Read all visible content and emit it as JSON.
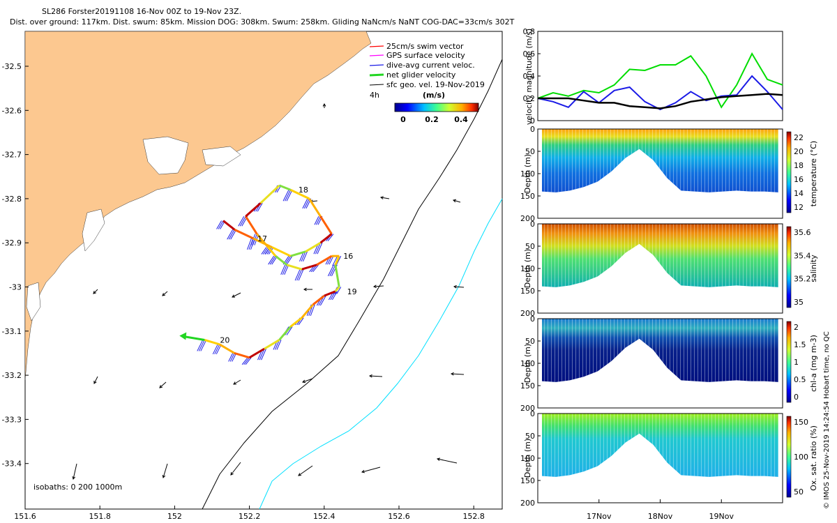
{
  "header": {
    "title": "SL286 Forster20191108 16-Nov 00Z to 19-Nov 23Z.",
    "subtitle": "Dist. over ground: 117km. Dist. swum: 85km. Mission DOG: 308km. Swum: 258km. Gliding NaNcm/s NaNT COG-DAC=33cm/s 302T"
  },
  "map": {
    "legend": {
      "swim": "25cm/s swim vector",
      "gps": "GPS surface velocity",
      "dac": "dive-avg current veloc.",
      "net": "net glider velocity",
      "sfc": "sfc geo. vel. 19-Nov-2019",
      "interval": "4h"
    },
    "colorbar": {
      "label": "(m/s)",
      "ticks": [
        "0",
        "0.2",
        "0.4"
      ]
    },
    "day_labels": [
      "16",
      "17",
      "18",
      "19",
      "20"
    ],
    "isobaths": "isobaths: 0   200  1000m",
    "x_ticks": [
      "151.6",
      "151.8",
      "152",
      "152.2",
      "152.4",
      "152.6",
      "152.8"
    ],
    "y_ticks": [
      "-32.5",
      "-32.6",
      "-32.7",
      "-32.8",
      "-32.9",
      "-33",
      "-33.1",
      "-33.2",
      "-33.3",
      "-33.4"
    ],
    "colors": {
      "land": "#fcc890",
      "isobath_200": "#000000",
      "isobath_1000": "#00e0ff",
      "net": "#22d622",
      "dac": "#1a1ae6",
      "swim": "#ff0000"
    }
  },
  "right": {
    "velocity": {
      "ylabel": "velocity magnitude (m/s)",
      "y_ticks": [
        "0",
        "0.2",
        "0.4",
        "0.6",
        "0.8"
      ]
    },
    "temperature": {
      "ylabel": "Depth (m)",
      "cblabel": "temperature (°C)",
      "cb_ticks": [
        "12",
        "14",
        "16",
        "18",
        "20",
        "22"
      ]
    },
    "salinity": {
      "ylabel": "Depth (m)",
      "cblabel": "salinity",
      "cb_ticks": [
        "35",
        "35.2",
        "35.4",
        "35.6"
      ]
    },
    "chla": {
      "ylabel": "Depth (m)",
      "cblabel": "chl-a (mg m-3)",
      "cb_ticks": [
        "0",
        "0.5",
        "1",
        "1.5",
        "2"
      ]
    },
    "oxygen": {
      "ylabel": "Depth (m)",
      "cblabel": "Ox. sat. ratio (%)",
      "cb_ticks": [
        "50",
        "100",
        "150"
      ]
    },
    "depth_ticks": [
      "0",
      "50",
      "100",
      "150",
      "200"
    ],
    "x_ticks": [
      "17Nov",
      "18Nov",
      "19Nov"
    ],
    "credit": "© IMOS 25-Nov-2019 14:24:54 Hobart time, no QC"
  },
  "chart_data": [
    {
      "type": "scatter",
      "title": "SL286 Forster20191108 16-Nov 00Z to 19-Nov 23Z.",
      "xlim": [
        151.6,
        152.9
      ],
      "ylim": [
        -33.5,
        -32.42
      ],
      "glider_track": {
        "lon": [
          152.08,
          152.12,
          152.16,
          152.2,
          152.24,
          152.28,
          152.31,
          152.34,
          152.37,
          152.4,
          152.43,
          152.44,
          152.43,
          152.44,
          152.42,
          152.38,
          152.34,
          152.3,
          152.27,
          152.25,
          152.22,
          152.19,
          152.23,
          152.28,
          152.31,
          152.36,
          152.39,
          152.42,
          152.39,
          152.35,
          152.31,
          152.26,
          152.21,
          152.16,
          152.13
        ],
        "lat": [
          -33.12,
          -33.13,
          -33.15,
          -33.16,
          -33.14,
          -33.12,
          -33.09,
          -33.07,
          -33.04,
          -33.02,
          -33.01,
          -33.0,
          -32.95,
          -32.93,
          -32.93,
          -32.95,
          -32.96,
          -32.95,
          -32.93,
          -32.91,
          -32.88,
          -32.84,
          -32.81,
          -32.77,
          -32.78,
          -32.8,
          -32.84,
          -32.88,
          -32.9,
          -32.92,
          -32.93,
          -32.91,
          -32.89,
          -32.87,
          -32.85
        ]
      },
      "day_labels": [
        {
          "day": "16",
          "lon": 152.44,
          "lat": -32.93
        },
        {
          "day": "17",
          "lon": 152.21,
          "lat": -32.89
        },
        {
          "day": "18",
          "lon": 152.32,
          "lat": -32.78
        },
        {
          "day": "19",
          "lon": 152.45,
          "lat": -33.01
        },
        {
          "day": "20",
          "lon": 152.11,
          "lat": -33.12
        }
      ],
      "legend": [
        "25cm/s swim vector",
        "GPS surface velocity",
        "dive-avg current veloc.",
        "net glider velocity",
        "sfc geo. vel. 19-Nov-2019"
      ]
    },
    {
      "type": "line",
      "ylabel": "velocity magnitude (m/s)",
      "xlim": [
        16.0,
        20.0
      ],
      "ylim": [
        0,
        0.8
      ],
      "x": [
        16.0,
        16.25,
        16.5,
        16.75,
        17.0,
        17.25,
        17.5,
        17.75,
        18.0,
        18.25,
        18.5,
        18.75,
        19.0,
        19.25,
        19.5,
        19.75,
        20.0
      ],
      "series": [
        {
          "color": "#00dd00",
          "values": [
            0.2,
            0.25,
            0.22,
            0.27,
            0.25,
            0.32,
            0.46,
            0.45,
            0.5,
            0.5,
            0.58,
            0.4,
            0.12,
            0.32,
            0.6,
            0.37,
            0.32
          ]
        },
        {
          "color": "#1a1ae6",
          "values": [
            0.2,
            0.17,
            0.12,
            0.26,
            0.16,
            0.27,
            0.3,
            0.17,
            0.1,
            0.16,
            0.26,
            0.18,
            0.22,
            0.23,
            0.4,
            0.26,
            0.1
          ]
        },
        {
          "color": "#000000",
          "values": [
            0.2,
            0.2,
            0.2,
            0.18,
            0.16,
            0.16,
            0.13,
            0.12,
            0.11,
            0.13,
            0.17,
            0.19,
            0.21,
            0.22,
            0.23,
            0.24,
            0.23
          ]
        }
      ]
    },
    {
      "type": "heatmap",
      "ylabel": "Depth (m)",
      "variable": "temperature (°C)",
      "xlim": [
        16.0,
        20.0
      ],
      "ylim": [
        200,
        0
      ],
      "clim": [
        11,
        23
      ]
    },
    {
      "type": "heatmap",
      "ylabel": "Depth (m)",
      "variable": "salinity",
      "xlim": [
        16.0,
        20.0
      ],
      "ylim": [
        200,
        0
      ],
      "clim": [
        34.9,
        35.7
      ]
    },
    {
      "type": "heatmap",
      "ylabel": "Depth (m)",
      "variable": "chl-a (mg m-3)",
      "xlim": [
        16.0,
        20.0
      ],
      "ylim": [
        200,
        0
      ],
      "clim": [
        0,
        2
      ]
    },
    {
      "type": "heatmap",
      "ylabel": "Depth (m)",
      "variable": "Ox. sat. ratio (%)",
      "xlim": [
        16.0,
        20.0
      ],
      "ylim": [
        200,
        0
      ],
      "clim": [
        30,
        170
      ]
    }
  ]
}
